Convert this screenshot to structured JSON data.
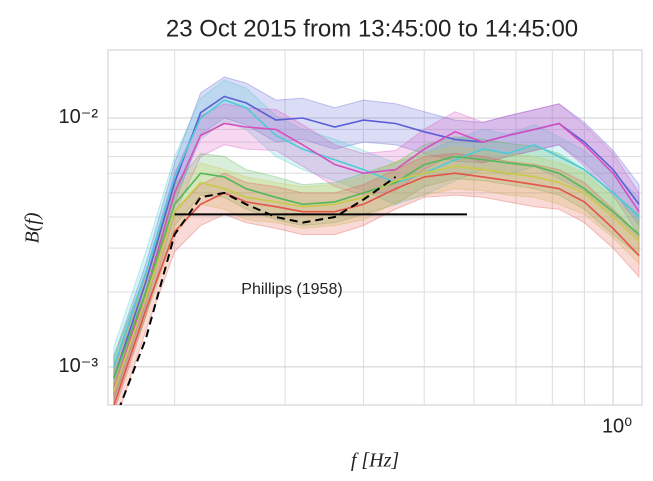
{
  "chart_data": {
    "type": "line",
    "title": "23 Oct 2015 from 13:45:00 to 14:45:00",
    "x_label": "f [Hz]",
    "y_label": "B(f)",
    "log_x": true,
    "log_y": true,
    "grid": true,
    "xlim": [
      0.1566,
      1.112
    ],
    "ylim": [
      0.000703,
      0.01875
    ],
    "xticks": [
      {
        "value": 1,
        "label": "10⁰"
      }
    ],
    "yticks": [
      {
        "value": 0.001,
        "label": "10⁻³"
      },
      {
        "value": 0.01,
        "label": "10⁻²"
      }
    ],
    "xminorticks": [
      0.2,
      0.3,
      0.4,
      0.5,
      0.6,
      0.7,
      0.8,
      0.9
    ],
    "yminorticks": [
      0.002,
      0.003,
      0.004,
      0.005,
      0.006,
      0.007,
      0.008,
      0.009
    ],
    "x": [
      0.16,
      0.18,
      0.2,
      0.22,
      0.24,
      0.26,
      0.29,
      0.32,
      0.36,
      0.4,
      0.45,
      0.5,
      0.56,
      0.62,
      0.68,
      0.75,
      0.82,
      0.9,
      1.0,
      1.1
    ],
    "series": [
      {
        "color": "#5b5fd6",
        "values": [
          0.0009,
          0.0022,
          0.0055,
          0.0105,
          0.0122,
          0.0115,
          0.0098,
          0.01,
          0.0092,
          0.0098,
          0.0095,
          0.0088,
          0.0082,
          0.008,
          0.0085,
          0.009,
          0.0095,
          0.008,
          0.0062,
          0.0045
        ],
        "lower": [
          0.00074,
          0.0018,
          0.0045,
          0.0086,
          0.01,
          0.0094,
          0.008,
          0.0082,
          0.0075,
          0.008,
          0.0078,
          0.0072,
          0.0067,
          0.0066,
          0.007,
          0.0074,
          0.0078,
          0.0066,
          0.0051,
          0.0037
        ],
        "upper": [
          0.0011,
          0.0026,
          0.0066,
          0.0126,
          0.0146,
          0.0138,
          0.0118,
          0.012,
          0.011,
          0.0118,
          0.0114,
          0.0106,
          0.0098,
          0.0096,
          0.0102,
          0.0108,
          0.0114,
          0.0096,
          0.0074,
          0.0054
        ]
      },
      {
        "color": "#4ecbd8",
        "values": [
          0.001,
          0.0024,
          0.0058,
          0.01,
          0.0118,
          0.011,
          0.0085,
          0.0075,
          0.0068,
          0.0062,
          0.0055,
          0.006,
          0.0068,
          0.0075,
          0.0072,
          0.0078,
          0.007,
          0.0062,
          0.005,
          0.004
        ],
        "lower": [
          0.00082,
          0.002,
          0.0048,
          0.0082,
          0.0097,
          0.009,
          0.007,
          0.0062,
          0.0056,
          0.0051,
          0.0045,
          0.0049,
          0.0056,
          0.0062,
          0.0059,
          0.0064,
          0.0057,
          0.0051,
          0.0041,
          0.0033
        ],
        "upper": [
          0.0012,
          0.0029,
          0.007,
          0.012,
          0.0142,
          0.0132,
          0.0102,
          0.009,
          0.0082,
          0.0074,
          0.0066,
          0.0072,
          0.0082,
          0.009,
          0.0086,
          0.0094,
          0.0084,
          0.0074,
          0.006,
          0.0048
        ]
      },
      {
        "color": "#d64fbf",
        "values": [
          0.0008,
          0.002,
          0.005,
          0.0085,
          0.0095,
          0.0092,
          0.009,
          0.0078,
          0.0065,
          0.006,
          0.0062,
          0.0075,
          0.0088,
          0.008,
          0.0085,
          0.009,
          0.0095,
          0.0078,
          0.006,
          0.0042
        ],
        "lower": [
          0.00066,
          0.0016,
          0.0041,
          0.007,
          0.0078,
          0.0075,
          0.0074,
          0.0064,
          0.0053,
          0.0049,
          0.0051,
          0.0062,
          0.0072,
          0.0066,
          0.007,
          0.0074,
          0.0078,
          0.0064,
          0.0049,
          0.0034
        ],
        "upper": [
          0.00096,
          0.0024,
          0.006,
          0.0102,
          0.0114,
          0.011,
          0.0108,
          0.0094,
          0.0078,
          0.0072,
          0.0074,
          0.009,
          0.0106,
          0.0096,
          0.0102,
          0.0108,
          0.0114,
          0.0094,
          0.0072,
          0.005
        ]
      },
      {
        "color": "#55b85a",
        "values": [
          0.0009,
          0.002,
          0.0045,
          0.006,
          0.0058,
          0.0052,
          0.0048,
          0.0045,
          0.0046,
          0.005,
          0.0055,
          0.0065,
          0.007,
          0.0068,
          0.0066,
          0.0064,
          0.006,
          0.0052,
          0.0042,
          0.0034
        ],
        "lower": [
          0.00074,
          0.0016,
          0.0037,
          0.0049,
          0.0048,
          0.0043,
          0.0039,
          0.0037,
          0.0038,
          0.0041,
          0.0045,
          0.0053,
          0.0057,
          0.0056,
          0.0054,
          0.0052,
          0.0049,
          0.0043,
          0.0034,
          0.0028
        ],
        "upper": [
          0.0011,
          0.0024,
          0.0054,
          0.0072,
          0.007,
          0.0062,
          0.0058,
          0.0054,
          0.0055,
          0.006,
          0.0066,
          0.0078,
          0.0084,
          0.0082,
          0.0079,
          0.0077,
          0.0072,
          0.0062,
          0.005,
          0.0041
        ]
      },
      {
        "color": "#c9c94a",
        "values": [
          0.0008,
          0.0019,
          0.0042,
          0.0055,
          0.0052,
          0.0048,
          0.0046,
          0.0044,
          0.0045,
          0.0048,
          0.0056,
          0.006,
          0.0064,
          0.0062,
          0.006,
          0.0058,
          0.0055,
          0.005,
          0.004,
          0.0032
        ],
        "lower": [
          0.00066,
          0.0016,
          0.0034,
          0.0045,
          0.0043,
          0.0039,
          0.0038,
          0.0036,
          0.0037,
          0.0039,
          0.0046,
          0.0049,
          0.0052,
          0.0051,
          0.0049,
          0.0048,
          0.0045,
          0.0041,
          0.0033,
          0.0026
        ],
        "upper": [
          0.00096,
          0.0023,
          0.005,
          0.0066,
          0.0062,
          0.0058,
          0.0055,
          0.0053,
          0.0054,
          0.0058,
          0.0067,
          0.0072,
          0.0077,
          0.0074,
          0.0072,
          0.007,
          0.0066,
          0.006,
          0.0048,
          0.0038
        ]
      },
      {
        "color": "#e3554a",
        "values": [
          0.0007,
          0.0017,
          0.0035,
          0.0045,
          0.005,
          0.0046,
          0.0044,
          0.0042,
          0.0042,
          0.0045,
          0.0052,
          0.0058,
          0.006,
          0.0058,
          0.0056,
          0.0054,
          0.0052,
          0.0046,
          0.0036,
          0.0028
        ],
        "lower": [
          0.00057,
          0.0014,
          0.0029,
          0.0037,
          0.0041,
          0.0038,
          0.0036,
          0.0034,
          0.0034,
          0.0037,
          0.0043,
          0.0048,
          0.0049,
          0.0048,
          0.0046,
          0.0044,
          0.0043,
          0.0038,
          0.003,
          0.0023
        ],
        "upper": [
          0.00084,
          0.002,
          0.0042,
          0.0054,
          0.006,
          0.0055,
          0.0053,
          0.005,
          0.005,
          0.0054,
          0.0062,
          0.007,
          0.0072,
          0.007,
          0.0067,
          0.0065,
          0.0062,
          0.0055,
          0.0043,
          0.0034
        ]
      },
      {
        "color": "#000000",
        "dashed": true,
        "values": [
          0.0006,
          0.0013,
          0.0034,
          0.0048,
          0.005,
          0.0045,
          0.004,
          0.0038,
          0.004,
          0.0047,
          0.0058,
          null,
          null,
          null,
          null,
          null,
          null,
          null,
          null,
          null
        ]
      }
    ],
    "reference_line": {
      "label": "Phillips (1958)",
      "color": "#000000",
      "x": [
        0.2,
        0.585
      ],
      "values": [
        0.0041,
        0.0041
      ]
    }
  }
}
